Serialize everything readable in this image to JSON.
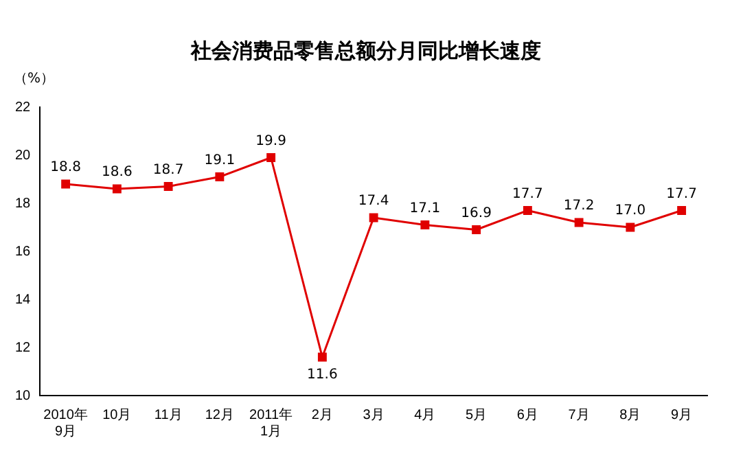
{
  "chart_data": {
    "type": "line",
    "title": "社会消费品零售总额分月同比增长速度",
    "ylabel": "（%）",
    "categories": [
      "2010年\n9月",
      "10月",
      "11月",
      "12月",
      "2011年\n1月",
      "2月",
      "3月",
      "4月",
      "5月",
      "6月",
      "7月",
      "8月",
      "9月"
    ],
    "series": [
      {
        "color": "#e00000",
        "values": [
          18.8,
          18.6,
          18.7,
          19.1,
          19.9,
          11.6,
          17.4,
          17.1,
          16.9,
          17.7,
          17.2,
          17.0,
          17.7
        ],
        "value_labels": [
          "18.8",
          "18.6",
          "18.7",
          "19.1",
          "19.9",
          "11.6",
          "17.4",
          "17.1",
          "16.9",
          "17.7",
          "17.2",
          "17.0",
          "17.7"
        ]
      }
    ],
    "ylim": [
      10,
      22
    ],
    "yticks": [
      10,
      12,
      14,
      16,
      18,
      20,
      22
    ],
    "grid": false,
    "legend": false,
    "marker": "square",
    "line_style": "solid",
    "data_labels": true
  }
}
